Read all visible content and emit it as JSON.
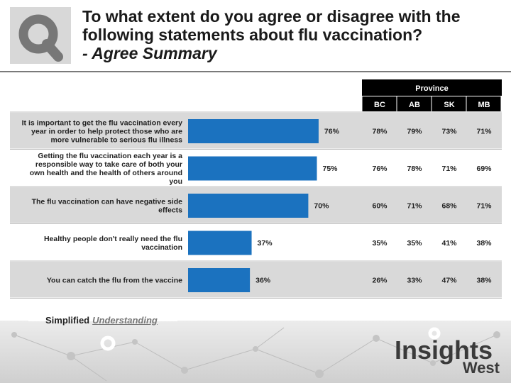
{
  "header": {
    "title_line1": "To what extent do you agree or disagree with the",
    "title_line2": "following statements about flu vaccination?",
    "subtitle": "- Agree Summary"
  },
  "chart_data": {
    "type": "bar",
    "orientation": "horizontal",
    "categories": [
      "It is important to get the flu vaccination every year in order to help protect those who are more vulnerable to serious flu illness",
      "Getting the flu vaccination each year is a responsible way to take care of both your own health and the health of others around you",
      "The flu vaccination can have negative side effects",
      "Healthy people don't really need the flu vaccination",
      "You can catch the flu from the vaccine"
    ],
    "category_lines": [
      [
        "It is important to get the flu vaccination every",
        "year in order to help protect those who are",
        "more vulnerable to serious flu illness"
      ],
      [
        "Getting the flu vaccination each year is a",
        "responsible way to take care of both your",
        "own health and the health of others around",
        "you"
      ],
      [
        "The flu vaccination can have negative side",
        "effects"
      ],
      [
        "Healthy people don't really need the flu",
        "vaccination"
      ],
      [
        "You can catch the flu from the vaccine"
      ]
    ],
    "values": [
      76,
      75,
      70,
      37,
      36
    ],
    "value_labels": [
      "76%",
      "75%",
      "70%",
      "37%",
      "36%"
    ],
    "xlim": [
      0,
      100
    ],
    "bar_color": "#1b72bf",
    "table": {
      "group_header": "Province",
      "columns": [
        "BC",
        "AB",
        "SK",
        "MB"
      ],
      "rows": [
        [
          "78%",
          "79%",
          "73%",
          "71%"
        ],
        [
          "76%",
          "78%",
          "71%",
          "69%"
        ],
        [
          "60%",
          "71%",
          "68%",
          "71%"
        ],
        [
          "35%",
          "35%",
          "41%",
          "38%"
        ],
        [
          "26%",
          "33%",
          "47%",
          "38%"
        ]
      ]
    }
  },
  "footer": {
    "tagline_a": "Simplified",
    "tagline_b": "Understanding",
    "brand_top": "Insights",
    "brand_bottom": "West"
  }
}
